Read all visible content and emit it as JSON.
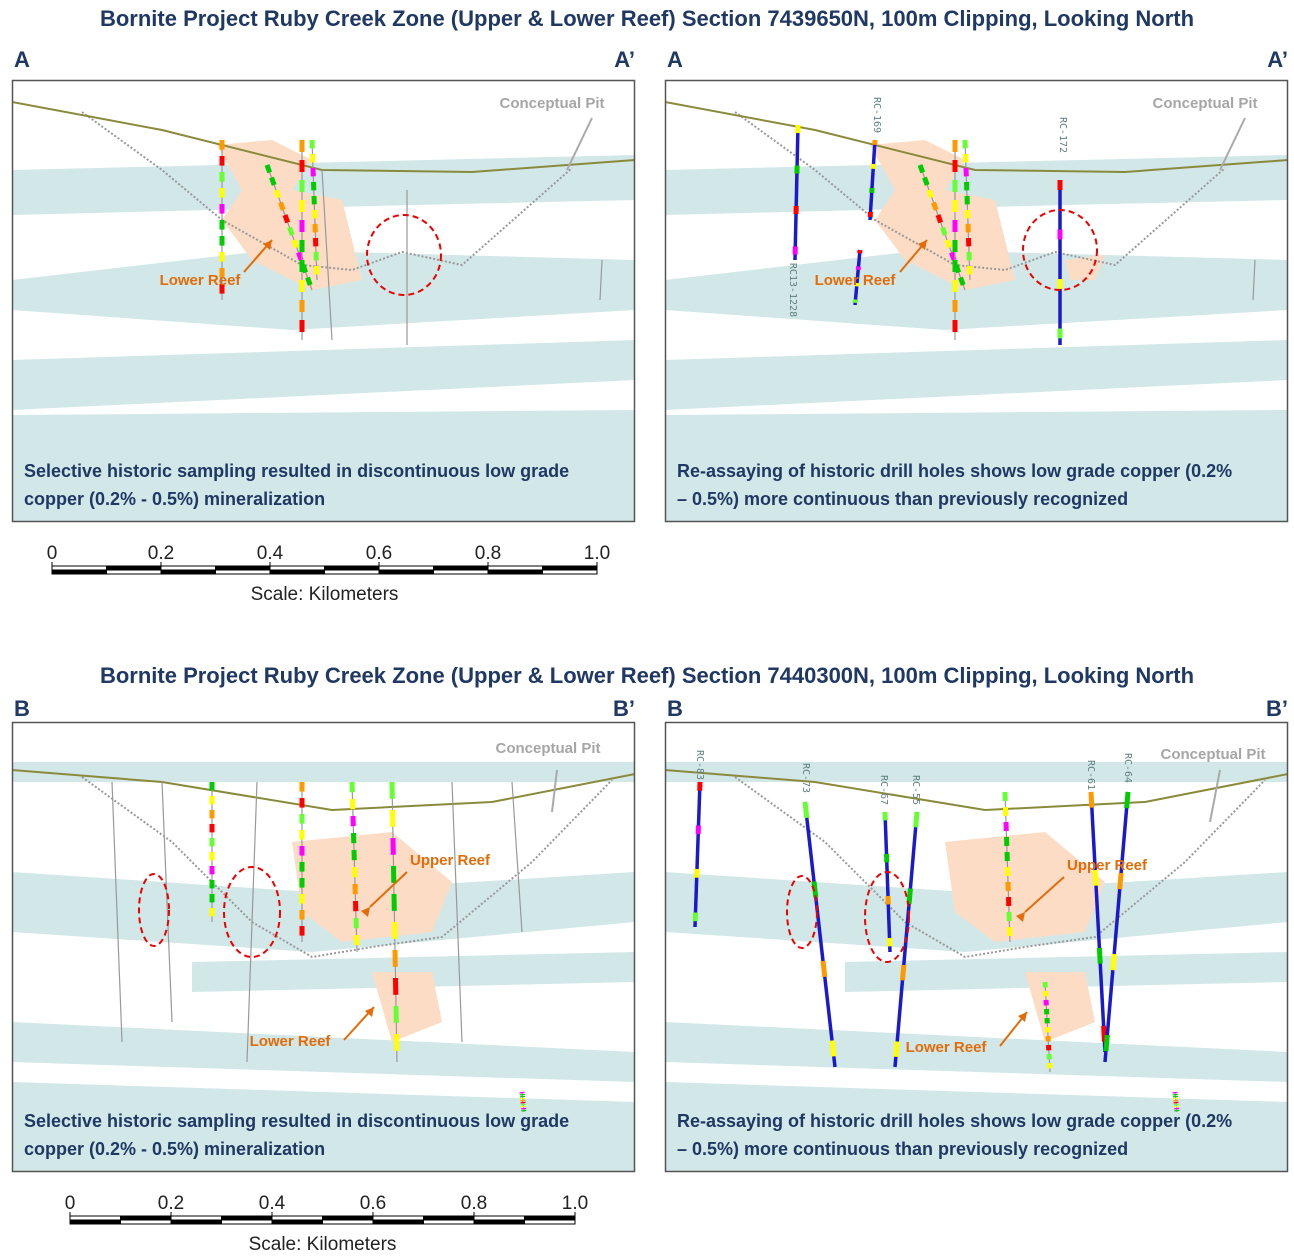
{
  "sections": [
    {
      "title": "Bornite Project Ruby Creek Zone (Upper & Lower Reef) Section 7439650N, 100m Clipping, Looking North",
      "panels": [
        {
          "left_label": "A",
          "right_label": "A’",
          "pit_label": "Conceptual Pit",
          "reef_labels": [
            "Lower Reef"
          ],
          "hole_labels": [],
          "caption_lines": [
            "Selective historic sampling resulted in discontinuous  low grade",
            "copper (0.2% - 0.5%) mineralization"
          ]
        },
        {
          "left_label": "A",
          "right_label": "A’",
          "pit_label": "Conceptual Pit",
          "reef_labels": [
            "Lower Reef"
          ],
          "hole_labels": [
            "RC-169",
            "RC-172",
            "RC13-1228"
          ],
          "caption_lines": [
            "Re-assaying of historic drill holes shows low grade copper (0.2%",
            "– 0.5%) more continuous  than previously  recognized"
          ]
        }
      ],
      "scale": {
        "ticks": [
          "0",
          "0.2",
          "0.4",
          "0.6",
          "0.8",
          "1.0"
        ],
        "label": "Scale: Kilometers"
      }
    },
    {
      "title": "Bornite Project Ruby Creek Zone (Upper & Lower Reef) Section 7440300N, 100m Clipping, Looking North",
      "panels": [
        {
          "left_label": "B",
          "right_label": "B’",
          "pit_label": "Conceptual Pit",
          "reef_labels": [
            "Upper Reef",
            "Lower Reef"
          ],
          "hole_labels": [],
          "caption_lines": [
            "Selective historic sampling resulted in discontinuous  low grade",
            "copper (0.2% - 0.5%) mineralization"
          ]
        },
        {
          "left_label": "B",
          "right_label": "B’",
          "pit_label": "Conceptual Pit",
          "reef_labels": [
            "Upper Reef",
            "Lower Reef"
          ],
          "hole_labels": [
            "RC-83",
            "RC-73",
            "RC-67",
            "RC-55",
            "RC-61",
            "RC-64"
          ],
          "caption_lines": [
            "Re-assaying of historic drill holes shows low grade copper (0.2%",
            "– 0.5%) more continuous  than previously  recognized"
          ]
        }
      ],
      "scale": {
        "ticks": [
          "0",
          "0.2",
          "0.4",
          "0.6",
          "0.8",
          "1.0"
        ],
        "label": "Scale: Kilometers"
      }
    }
  ]
}
